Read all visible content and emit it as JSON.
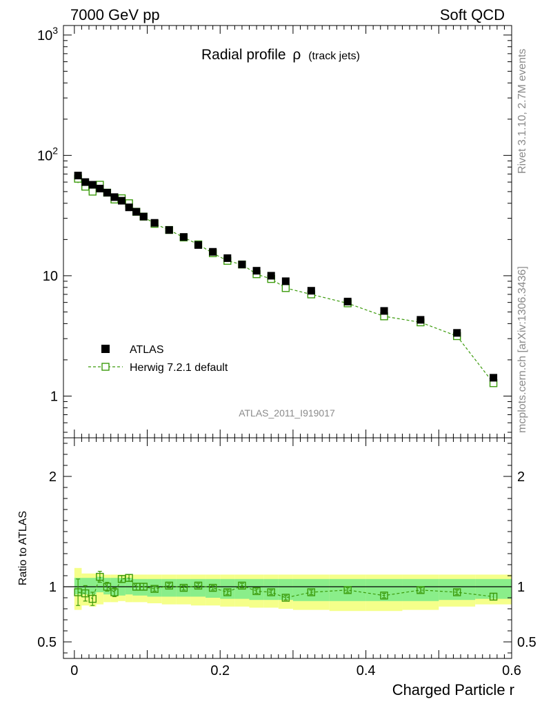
{
  "header": {
    "left": "7000 GeV pp",
    "right": "Soft QCD"
  },
  "side_labels": {
    "rivet": "Rivet 3.1.10,  2.7M events",
    "mcplots": "mcplots.cern.ch [arXiv:1306.3436]"
  },
  "analysis_id": "ATLAS_2011_I919017",
  "colors": {
    "data": "#000000",
    "mc": "#3a9a0a",
    "band_mc": "#f5ff8a",
    "band_data": "#8aee8a"
  },
  "chart_data": [
    {
      "type": "scatter",
      "title_main": "Radial profile",
      "title_symbol": "ρ",
      "title_sub": "(track jets)",
      "yscale": "log",
      "xlim": [
        -0.015,
        0.6
      ],
      "ylim": [
        0.45,
        1200
      ],
      "y_ticks": [
        {
          "v": 1,
          "label": "1"
        },
        {
          "v": 10,
          "label": "10"
        },
        {
          "v": 100,
          "label": "10",
          "exp": "2"
        },
        {
          "v": 1000,
          "label": "10",
          "exp": "3"
        }
      ],
      "legend": {
        "position": "left-middle",
        "entries": [
          "ATLAS",
          "Herwig 7.2.1 default"
        ]
      },
      "x": [
        0.005,
        0.015,
        0.025,
        0.035,
        0.045,
        0.055,
        0.065,
        0.075,
        0.085,
        0.095,
        0.11,
        0.13,
        0.15,
        0.17,
        0.19,
        0.21,
        0.23,
        0.25,
        0.27,
        0.29,
        0.325,
        0.375,
        0.425,
        0.475,
        0.525,
        0.575
      ],
      "series": [
        {
          "name": "ATLAS",
          "values": [
            68,
            60,
            57,
            53,
            49,
            45,
            42,
            37,
            34,
            31,
            27.5,
            24,
            21,
            18,
            15.8,
            14,
            12.4,
            11,
            10,
            9,
            7.5,
            6.1,
            5.1,
            4.3,
            3.35,
            1.42
          ]
        },
        {
          "name": "Herwig 7.2.1 default",
          "values": [
            64,
            55,
            50,
            57,
            49,
            43,
            44,
            40,
            34,
            31,
            27,
            24,
            20.8,
            18.2,
            15.4,
            13.3,
            12.4,
            10.3,
            9.4,
            7.9,
            7.0,
            5.9,
            4.6,
            4.1,
            3.15,
            1.28
          ],
          "errors": [
            0.08,
            0.06,
            0.05,
            0.04,
            0.03,
            0.03,
            0.02,
            0.02,
            0.01,
            0.01,
            0,
            0,
            0,
            0,
            0,
            0,
            0,
            0,
            0,
            0,
            0,
            0,
            0,
            0,
            0,
            0
          ]
        }
      ]
    },
    {
      "type": "scatter",
      "ylabel": "Ratio to ATLAS",
      "xlabel": "Charged Particle r",
      "xlim": [
        -0.015,
        0.6
      ],
      "ylim": [
        0.35,
        2.35
      ],
      "x_ticks": [
        {
          "v": 0,
          "label": "0"
        },
        {
          "v": 0.2,
          "label": "0.2"
        },
        {
          "v": 0.4,
          "label": "0.4"
        },
        {
          "v": 0.6,
          "label": "0.6"
        }
      ],
      "y_ticks": [
        {
          "v": 0.5,
          "label": "0.5"
        },
        {
          "v": 1,
          "label": "1"
        },
        {
          "v": 2,
          "label": "2"
        }
      ],
      "bin_edges": [
        0,
        0.01,
        0.02,
        0.03,
        0.04,
        0.05,
        0.06,
        0.07,
        0.08,
        0.09,
        0.1,
        0.12,
        0.14,
        0.16,
        0.18,
        0.2,
        0.22,
        0.24,
        0.26,
        0.28,
        0.3,
        0.35,
        0.4,
        0.45,
        0.5,
        0.55,
        0.6
      ],
      "data_band": {
        "lo": [
          0.93,
          0.93,
          0.93,
          0.95,
          0.93,
          0.92,
          0.92,
          0.93,
          0.92,
          0.92,
          0.91,
          0.91,
          0.91,
          0.91,
          0.9,
          0.89,
          0.89,
          0.88,
          0.88,
          0.88,
          0.87,
          0.87,
          0.87,
          0.87,
          0.88,
          0.89
        ],
        "hi": [
          1.08,
          1.08,
          1.08,
          1.09,
          1.08,
          1.08,
          1.08,
          1.08,
          1.07,
          1.07,
          1.07,
          1.07,
          1.07,
          1.07,
          1.07,
          1.07,
          1.07,
          1.07,
          1.07,
          1.07,
          1.07,
          1.07,
          1.07,
          1.07,
          1.07,
          1.07
        ]
      },
      "mc_band": {
        "lo": [
          0.79,
          0.83,
          0.82,
          0.84,
          0.86,
          0.86,
          0.87,
          0.86,
          0.86,
          0.86,
          0.85,
          0.84,
          0.84,
          0.83,
          0.83,
          0.82,
          0.82,
          0.81,
          0.81,
          0.8,
          0.79,
          0.78,
          0.78,
          0.79,
          0.82,
          0.84
        ],
        "hi": [
          1.17,
          1.12,
          1.12,
          1.12,
          1.11,
          1.11,
          1.11,
          1.11,
          1.11,
          1.11,
          1.11,
          1.11,
          1.11,
          1.11,
          1.11,
          1.11,
          1.11,
          1.11,
          1.11,
          1.11,
          1.11,
          1.11,
          1.11,
          1.11,
          1.11,
          1.11
        ]
      },
      "x": [
        0.005,
        0.015,
        0.025,
        0.035,
        0.045,
        0.055,
        0.065,
        0.075,
        0.085,
        0.095,
        0.11,
        0.13,
        0.15,
        0.17,
        0.19,
        0.21,
        0.23,
        0.25,
        0.27,
        0.29,
        0.325,
        0.375,
        0.425,
        0.475,
        0.525,
        0.575
      ],
      "ratio": [
        0.95,
        0.94,
        0.89,
        1.09,
        1.0,
        0.95,
        1.07,
        1.08,
        1.0,
        1.0,
        0.98,
        1.01,
        0.99,
        1.01,
        0.99,
        0.95,
        1.01,
        0.96,
        0.95,
        0.9,
        0.95,
        0.97,
        0.92,
        0.97,
        0.95,
        0.91
      ],
      "ratio_err": [
        0.12,
        0.07,
        0.06,
        0.05,
        0.04,
        0.04,
        0.03,
        0.03,
        0.03,
        0.03,
        0.02,
        0.02,
        0.02,
        0.02,
        0.02,
        0.02,
        0.02,
        0.02,
        0.02,
        0.02,
        0.02,
        0.02,
        0.02,
        0.02,
        0.02,
        0.03
      ]
    }
  ]
}
